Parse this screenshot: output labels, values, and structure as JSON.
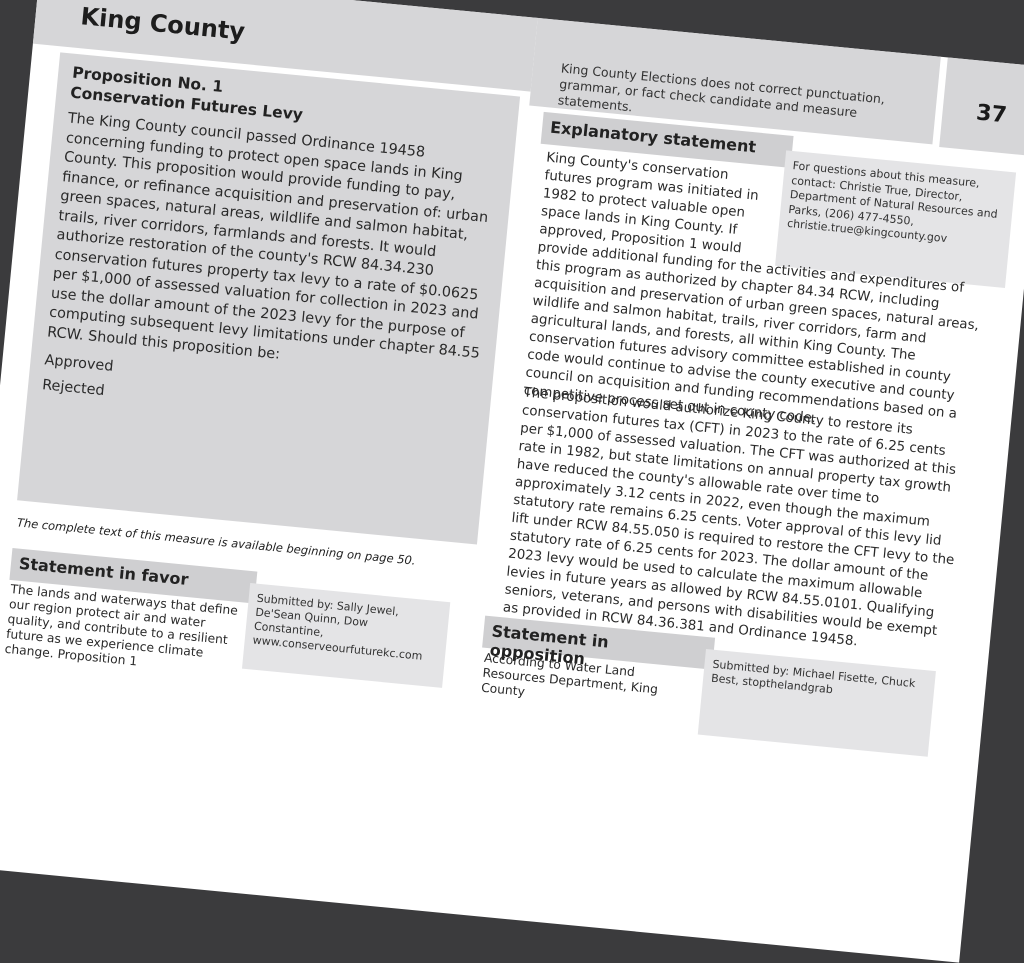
{
  "header": {
    "title": "King County"
  },
  "disclaimer": "King County Elections does not correct punctuation, grammar, or fact check candidate and measure statements.",
  "page_number": "37",
  "proposition": {
    "number": "Proposition No. 1",
    "title": "Conservation Futures Levy",
    "text": "The King County council passed Ordinance 19458 concerning funding to protect open space lands in King County. This proposition would provide funding to pay, finance, or refinance acquisition and preservation of: urban green spaces, natural areas, wildlife and salmon habitat, trails, river corridors, farmlands and forests. It would authorize restoration of the county's RCW 84.34.230 conservation futures property tax levy to a rate of $0.0625 per $1,000 of assessed valuation for collection in 2023 and use the dollar amount of the 2023 levy for the purpose of computing subsequent levy limitations under chapter 84.55 RCW. Should this proposition be:",
    "options": [
      "Approved",
      "Rejected"
    ]
  },
  "complete_text_note": "The complete text of this measure is available beginning on page 50.",
  "explanatory": {
    "heading": "Explanatory statement",
    "contact": "For questions about this measure, contact: Christie True, Director, Department of Natural Resources and Parks, (206) 477-4550, christie.true@kingcounty.gov",
    "p1_start": "King County's conservation futures program was initiated in 1982 to protect valuable open space lands in King County. If approved, Proposition 1 would",
    "p1_rest": "provide additional funding for the activities and expenditures of this program as authorized by chapter 84.34 RCW, including acquisition and preservation of urban green spaces, natural areas, wildlife and salmon habitat, trails, river corridors, farm and agricultural lands, and forests, all within King County. The conservation futures advisory committee established in county code would continue to advise the county executive and county council on acquisition and funding recommendations based on a competitive process set out in county code.",
    "p2": "The proposition would authorize King County to restore its conservation futures tax (CFT) in 2023 to the rate of 6.25 cents per $1,000 of assessed valuation. The CFT was authorized at this rate in 1982, but state limitations on annual property tax growth have reduced the county's allowable rate over time to approximately 3.12 cents in 2022, even though the maximum statutory rate remains 6.25 cents. Voter approval of this levy lid lift under RCW 84.55.050 is required to restore the CFT levy to the statutory rate of 6.25 cents for 2023. The dollar amount of the 2023 levy would be used to calculate the maximum allowable levies in future years as allowed by RCW 84.55.0101. Qualifying seniors, veterans, and persons with disabilities would be exempt as provided in RCW 84.36.381 and Ordinance 19458."
  },
  "favor": {
    "heading": "Statement in favor",
    "text": "The lands and waterways that define our region protect air and water quality, and contribute to a resilient future as we experience climate change. Proposition 1",
    "submitted_by": "Submitted by: Sally Jewel, De'Sean Quinn, Dow Constantine, www.conserveourfuturekc.com"
  },
  "opposition": {
    "heading": "Statement in opposition",
    "text": "According to Water Land Resources Department, King County",
    "submitted_by": "Submitted by: Michael Fisette, Chuck Best, stopthelandgrab"
  }
}
